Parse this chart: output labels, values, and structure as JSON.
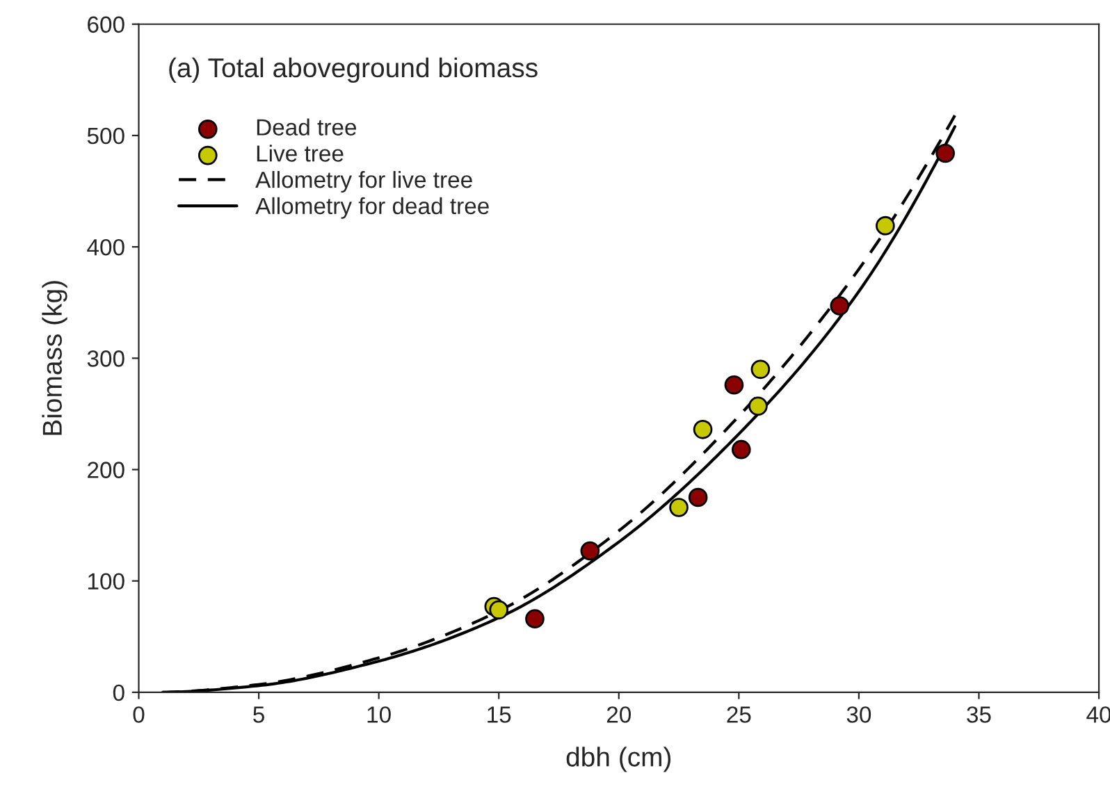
{
  "chart_data": {
    "type": "scatter",
    "title": "(a) Total aboveground biomass",
    "xlabel": "dbh (cm)",
    "ylabel": "Biomass (kg)",
    "xlim": [
      0,
      40
    ],
    "xticks": [
      0,
      5,
      10,
      15,
      20,
      25,
      30,
      35,
      40
    ],
    "ylim": [
      0,
      600
    ],
    "yticks": [
      0,
      100,
      200,
      300,
      400,
      500,
      600
    ],
    "grid": false,
    "legend": "top left",
    "series": [
      {
        "name": "Dead tree",
        "marker": "circle",
        "color": "#8b0000",
        "x": [
          16.5,
          18.8,
          23.3,
          24.8,
          25.1,
          29.2,
          33.6
        ],
        "values": [
          66,
          127,
          175,
          276,
          218,
          347,
          484
        ]
      },
      {
        "name": "Live tree",
        "marker": "circle",
        "color": "#c8c800",
        "x": [
          14.8,
          15.0,
          22.5,
          23.5,
          25.8,
          25.9,
          31.1
        ],
        "values": [
          77,
          74,
          166,
          236,
          257,
          290,
          419
        ]
      },
      {
        "name": "Allometry for live tree",
        "type": "line",
        "line_style": "dashed",
        "marker": "none",
        "color": "#000000",
        "x": [
          1,
          5,
          10,
          15,
          20,
          25,
          30,
          34
        ],
        "values": [
          0,
          7,
          31,
          73,
          145,
          248,
          380,
          518
        ]
      },
      {
        "name": "Allometry for dead tree",
        "type": "line",
        "line_style": "solid",
        "marker": "none",
        "color": "#000000",
        "x": [
          1,
          5,
          10,
          15,
          20,
          25,
          30,
          34
        ],
        "values": [
          0,
          6,
          28,
          67,
          135,
          232,
          360,
          508
        ]
      }
    ]
  }
}
